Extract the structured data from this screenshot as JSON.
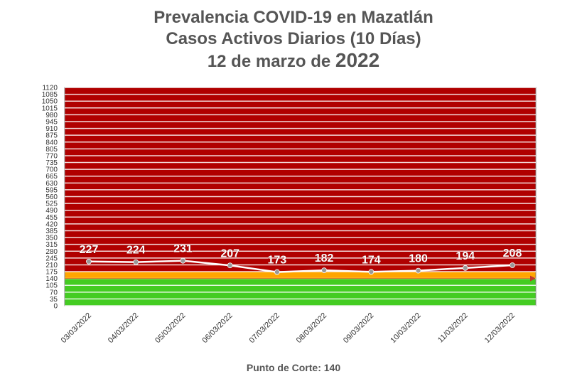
{
  "title": {
    "line1": "Prevalencia COVID-19 en Mazatlán",
    "line2": "Casos Activos Diarios (10 Días)",
    "line3_prefix": "12 de marzo de",
    "line3_year": "2022"
  },
  "footer": {
    "label": "Punto de Corte:",
    "value": "140"
  },
  "colors": {
    "red_zone": "#b00000",
    "orange_zone": "#ffa500",
    "green_zone": "#44cc22",
    "line": "#ffffff",
    "marker": "#999999"
  },
  "chart_data": {
    "type": "line",
    "title": "Prevalencia COVID-19 en Mazatlán — Casos Activos Diarios (10 Días) — 12 de marzo de 2022",
    "categories": [
      "03/03/2022",
      "04/03/2022",
      "05/03/2022",
      "06/03/2022",
      "07/03/2022",
      "08/03/2022",
      "09/03/2022",
      "10/03/2022",
      "11/03/2022",
      "12/03/2022"
    ],
    "series": [
      {
        "values": [
          227,
          224,
          231,
          207,
          173,
          182,
          174,
          180,
          194,
          208
        ]
      }
    ],
    "ylim": [
      0,
      1120
    ],
    "yticks": [
      0,
      35,
      70,
      105,
      140,
      175,
      210,
      245,
      280,
      315,
      350,
      385,
      420,
      455,
      490,
      525,
      560,
      595,
      630,
      665,
      700,
      735,
      770,
      805,
      840,
      875,
      910,
      945,
      980,
      1015,
      1050,
      1085,
      1120
    ],
    "bands": [
      {
        "from": 0,
        "to": 140,
        "color": "green"
      },
      {
        "from": 140,
        "to": 175,
        "color": "orange"
      },
      {
        "from": 175,
        "to": 1120,
        "color": "red"
      }
    ],
    "threshold": 140,
    "grid": true,
    "legend": "none"
  }
}
